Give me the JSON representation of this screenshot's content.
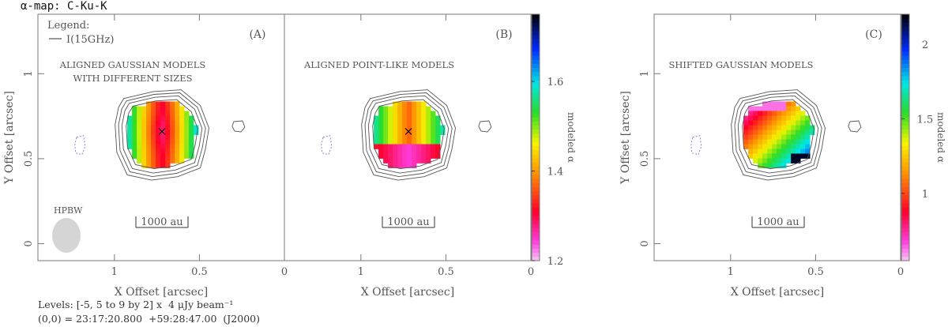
{
  "figure_title": "α-map: C-Ku-K",
  "footer": {
    "levels": "Levels: [-5, 5 to 9 by 2] x  4 μJy beam⁻¹",
    "origin": "(0,0) = 23:17:20.800  +59:28:47.00  (J2000)"
  },
  "chart_data": [
    {
      "type": "heatmap",
      "panel_label": "(A)",
      "caption": [
        "ALIGNED GAUSSIAN MODELS",
        "WITH DIFFERENT SIZES"
      ],
      "xlabel": "X Offset [arcsec]",
      "ylabel": "Y Offset [arcsec]",
      "xlim": [
        1.45,
        0.0
      ],
      "ylim": [
        -0.1,
        1.35
      ],
      "xticks": [
        "1",
        "0.5",
        "0"
      ],
      "xtick_values": [
        1.0,
        0.5,
        0.0
      ],
      "yticks": [
        "0",
        "0.5",
        "1"
      ],
      "ytick_values": [
        0.0,
        0.5,
        1.0
      ],
      "legend_title": "Legend:",
      "legend_entry": "I(15GHz)",
      "beam_label": "HPBW",
      "scale_bar": "1000 au",
      "source_center": [
        0.72,
        0.66
      ],
      "alpha_pattern": "central band",
      "alpha_range": [
        1.2,
        1.7
      ]
    },
    {
      "type": "heatmap",
      "panel_label": "(B)",
      "caption": [
        "ALIGNED POINT-LIKE MODELS"
      ],
      "xlabel": "X Offset [arcsec]",
      "xlim": [
        1.45,
        0.0
      ],
      "ylim": [
        -0.1,
        1.35
      ],
      "xticks": [
        "1",
        "0.5",
        "0"
      ],
      "xtick_values": [
        1.0,
        0.5,
        0.0
      ],
      "scale_bar": "1000 au",
      "source_center": [
        0.72,
        0.66
      ],
      "alpha_pattern": "point-like",
      "colorbar": {
        "label": "modeled α",
        "range": [
          1.2,
          1.75
        ],
        "ticks": [
          "1.2",
          "1.4",
          "1.6"
        ],
        "tick_values": [
          1.2,
          1.4,
          1.6
        ]
      }
    },
    {
      "type": "heatmap",
      "panel_label": "(C)",
      "caption": [
        "SHIFTED GAUSSIAN MODELS"
      ],
      "xlabel": "X Offset [arcsec]",
      "ylabel": "Y Offset [arcsec]",
      "xlim": [
        1.45,
        0.0
      ],
      "ylim": [
        -0.1,
        1.35
      ],
      "xticks": [
        "1",
        "0.5",
        "0"
      ],
      "xtick_values": [
        1.0,
        0.5,
        0.0
      ],
      "yticks": [
        "0",
        "0.5",
        "1"
      ],
      "ytick_values": [
        0.0,
        0.5,
        1.0
      ],
      "scale_bar": "1000 au",
      "source_center": [
        0.72,
        0.66
      ],
      "alpha_pattern": "gradient",
      "colorbar": {
        "label": "modeled α",
        "range": [
          0.55,
          2.2
        ],
        "ticks": [
          "1",
          "1.5",
          "2"
        ],
        "tick_values": [
          1.0,
          1.5,
          2.0
        ]
      }
    }
  ]
}
